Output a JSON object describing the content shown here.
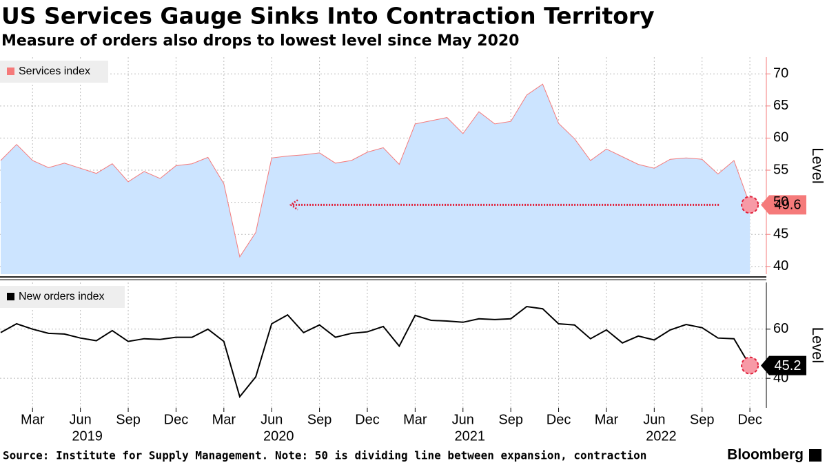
{
  "title": "US Services Gauge Sinks Into Contraction Territory",
  "subtitle": "Measure of orders also drops to lowest level since May 2020",
  "source": "Source: Institute for Supply Management. Note: 50 is dividing line between expansion, contraction",
  "brand": "Bloomberg",
  "chart_data": [
    {
      "type": "area",
      "ylabel": "Level",
      "grid": true,
      "legend": "top-left",
      "x": [
        "2019-01",
        "2019-02",
        "2019-03",
        "2019-04",
        "2019-05",
        "2019-06",
        "2019-07",
        "2019-08",
        "2019-09",
        "2019-10",
        "2019-11",
        "2019-12",
        "2020-01",
        "2020-02",
        "2020-03",
        "2020-04",
        "2020-05",
        "2020-06",
        "2020-07",
        "2020-08",
        "2020-09",
        "2020-10",
        "2020-11",
        "2020-12",
        "2021-01",
        "2021-02",
        "2021-03",
        "2021-04",
        "2021-05",
        "2021-06",
        "2021-07",
        "2021-08",
        "2021-09",
        "2021-10",
        "2021-11",
        "2021-12",
        "2022-01",
        "2022-02",
        "2022-03",
        "2022-04",
        "2022-05",
        "2022-06",
        "2022-07",
        "2022-08",
        "2022-09",
        "2022-10",
        "2022-11",
        "2022-12"
      ],
      "series": [
        {
          "name": "Services index",
          "color": "#f57a7a",
          "fill": "#cce4ff",
          "values": [
            56.5,
            59.0,
            56.5,
            55.4,
            56.1,
            55.3,
            54.5,
            56.0,
            53.2,
            54.8,
            53.7,
            55.7,
            56.0,
            57.0,
            52.9,
            41.5,
            45.3,
            56.9,
            57.2,
            57.4,
            57.7,
            56.1,
            56.5,
            57.8,
            58.5,
            55.9,
            62.2,
            62.7,
            63.2,
            60.7,
            64.1,
            62.2,
            62.6,
            66.7,
            68.4,
            62.3,
            59.9,
            56.5,
            58.3,
            57.1,
            55.9,
            55.3,
            56.7,
            56.9,
            56.7,
            54.4,
            56.5,
            49.6
          ]
        }
      ],
      "ylim": [
        38.8,
        72.6
      ],
      "yticks": [
        40,
        45,
        50,
        55,
        60,
        65,
        70
      ]
    },
    {
      "type": "line",
      "ylabel": "Level",
      "grid": true,
      "legend": "top-left",
      "x": [
        "2019-01",
        "2019-02",
        "2019-03",
        "2019-04",
        "2019-05",
        "2019-06",
        "2019-07",
        "2019-08",
        "2019-09",
        "2019-10",
        "2019-11",
        "2019-12",
        "2020-01",
        "2020-02",
        "2020-03",
        "2020-04",
        "2020-05",
        "2020-06",
        "2020-07",
        "2020-08",
        "2020-09",
        "2020-10",
        "2020-11",
        "2020-12",
        "2021-01",
        "2021-02",
        "2021-03",
        "2021-04",
        "2021-05",
        "2021-06",
        "2021-07",
        "2021-08",
        "2021-09",
        "2021-10",
        "2021-11",
        "2021-12",
        "2022-01",
        "2022-02",
        "2022-03",
        "2022-04",
        "2022-05",
        "2022-06",
        "2022-07",
        "2022-08",
        "2022-09",
        "2022-10",
        "2022-11",
        "2022-12"
      ],
      "series": [
        {
          "name": "New orders index",
          "color": "#000000",
          "values": [
            58.6,
            62.2,
            60.0,
            58.3,
            58.0,
            56.4,
            55.3,
            59.4,
            55.0,
            56.1,
            55.8,
            56.7,
            56.7,
            60.0,
            55.0,
            32.5,
            40.6,
            62.2,
            65.8,
            58.6,
            61.7,
            56.7,
            58.3,
            58.9,
            61.1,
            53.1,
            65.6,
            63.6,
            63.3,
            62.8,
            64.2,
            63.9,
            64.2,
            69.2,
            68.3,
            62.2,
            61.7,
            56.1,
            59.7,
            54.4,
            57.2,
            55.6,
            59.7,
            61.9,
            60.6,
            56.4,
            56.1,
            45.2
          ]
        }
      ],
      "ylim": [
        28,
        79
      ],
      "yticks": [
        40,
        60
      ],
      "xticks": [
        {
          "value": "2019-03",
          "label": "Mar"
        },
        {
          "value": "2019-06",
          "label": "Jun"
        },
        {
          "value": "2019-09",
          "label": "Sep"
        },
        {
          "value": "2019-12",
          "label": "Dec"
        },
        {
          "value": "2020-03",
          "label": "Mar"
        },
        {
          "value": "2020-06",
          "label": "Jun"
        },
        {
          "value": "2020-09",
          "label": "Sep"
        },
        {
          "value": "2020-12",
          "label": "Dec"
        },
        {
          "value": "2021-03",
          "label": "Mar"
        },
        {
          "value": "2021-06",
          "label": "Jun"
        },
        {
          "value": "2021-09",
          "label": "Sep"
        },
        {
          "value": "2021-12",
          "label": "Dec"
        },
        {
          "value": "2022-03",
          "label": "Mar"
        },
        {
          "value": "2022-06",
          "label": "Jun"
        },
        {
          "value": "2022-09",
          "label": "Sep"
        },
        {
          "value": "2022-12",
          "label": "Dec"
        }
      ],
      "year_ticks": [
        {
          "value": "2019-06",
          "label": "2019"
        },
        {
          "value": "2020-06",
          "label": "2020"
        },
        {
          "value": "2021-06",
          "label": "2021"
        },
        {
          "value": "2022-06",
          "label": "2022"
        }
      ]
    }
  ]
}
